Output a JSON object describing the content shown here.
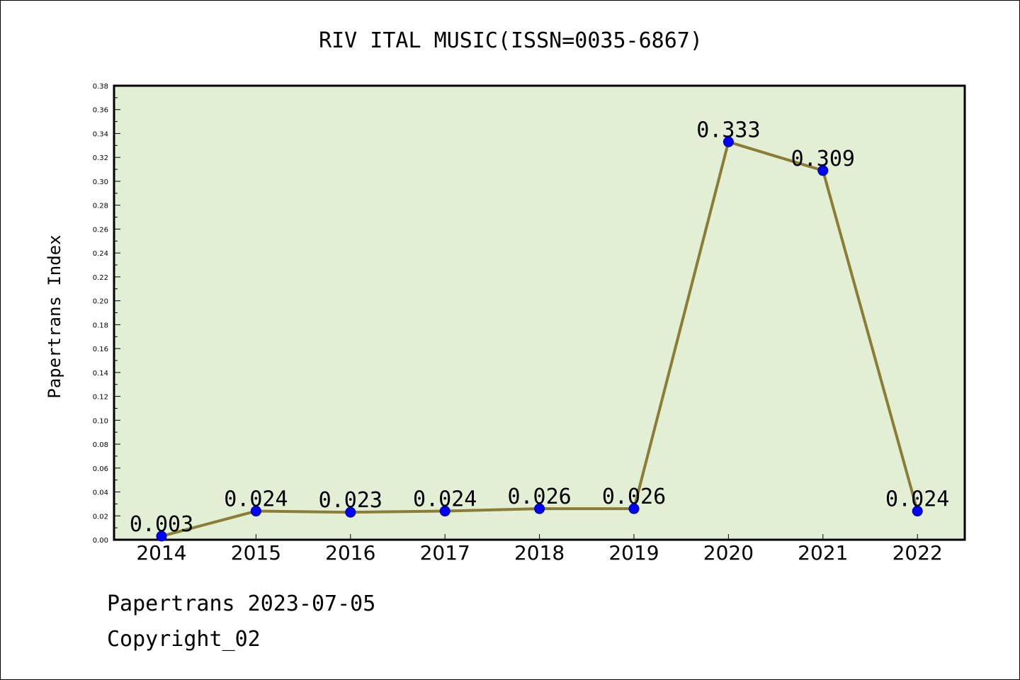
{
  "chart_data": {
    "type": "line",
    "title": "RIV ITAL MUSIC(ISSN=0035-6867)",
    "xlabel": "",
    "ylabel": "Papertrans Index",
    "categories": [
      "2014",
      "2015",
      "2016",
      "2017",
      "2018",
      "2019",
      "2020",
      "2021",
      "2022"
    ],
    "series": [
      {
        "values": [
          0.003,
          0.024,
          0.023,
          0.024,
          0.026,
          0.026,
          0.333,
          0.309,
          0.024
        ],
        "labels": [
          "0.003",
          "0.024",
          "0.023",
          "0.024",
          "0.026",
          "0.026",
          "0.333",
          "0.309",
          "0.024"
        ]
      }
    ],
    "ylim": [
      0,
      0.38
    ],
    "yticks": [
      "0.00",
      "0.02",
      "0.04",
      "0.06",
      "0.08",
      "0.10",
      "0.12",
      "0.14",
      "0.16",
      "0.18",
      "0.20",
      "0.22",
      "0.24",
      "0.26",
      "0.28",
      "0.30",
      "0.32",
      "0.34",
      "0.36",
      "0.38"
    ],
    "grid": false,
    "legend": "none",
    "colors": {
      "plot_background": "#e2efd5",
      "line": "#8b7d35",
      "marker": "#0000ff",
      "marker_edge": "#00008b"
    }
  },
  "footer": {
    "date_text": "Papertrans 2023-07-05",
    "copyright_text": "Copyright_02"
  }
}
